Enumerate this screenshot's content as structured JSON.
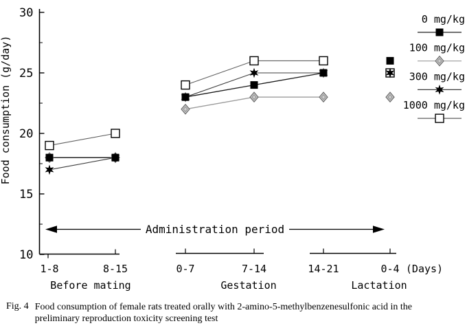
{
  "figure_caption": {
    "prefix": "Fig. 4",
    "line1": "Food consumption of female rats treated orally with 2-amino-5-methylbenzenesulfonic acid in the",
    "line2": "preliminary reproduction toxicity screening test"
  },
  "chart_data": {
    "type": "line",
    "title": "",
    "ylabel": "Food consumption (g/day)",
    "x_unit_label": "(Days)",
    "annotation": "Administration period",
    "ylim": [
      10,
      30
    ],
    "y_major_ticks": [
      10,
      15,
      20,
      25,
      30
    ],
    "y_minor_ticks": [
      12.5,
      17.5,
      22.5,
      27.5
    ],
    "grid": false,
    "legend_position": "top-right",
    "categories": [
      "1-8",
      "8-15",
      "0-7",
      "7-14",
      "14-21",
      "0-4"
    ],
    "line_segments": [
      [
        "1-8",
        "8-15"
      ],
      [
        "0-7",
        "7-14",
        "14-21"
      ],
      [
        "0-4"
      ]
    ],
    "period_groups": [
      {
        "label": "Before mating",
        "categories": [
          "1-8",
          "8-15"
        ]
      },
      {
        "label": "Gestation",
        "categories": [
          "0-7",
          "7-14"
        ]
      },
      {
        "label": "Lactation",
        "categories": [
          "14-21",
          "0-4"
        ]
      }
    ],
    "series": [
      {
        "name": "0 mg/kg",
        "marker": "filled-square",
        "values": [
          18,
          18,
          23,
          24,
          25,
          26
        ]
      },
      {
        "name": "100 mg/kg",
        "marker": "gray-diamond",
        "values": [
          18,
          18,
          22,
          23,
          23,
          23
        ]
      },
      {
        "name": "300 mg/kg",
        "marker": "black-star",
        "values": [
          17,
          18,
          23,
          25,
          25,
          25
        ]
      },
      {
        "name": "1000 mg/kg",
        "marker": "open-square",
        "values": [
          19,
          20,
          24,
          26,
          26,
          25
        ]
      }
    ]
  },
  "colors": {
    "ink": "#000000",
    "background": "#ffffff",
    "gray_line": "#9c9c9c",
    "dark_gray_line": "#5f5f5f",
    "diamond_fill": "#cccccc",
    "diamond_stroke": "#6e6e6e"
  }
}
